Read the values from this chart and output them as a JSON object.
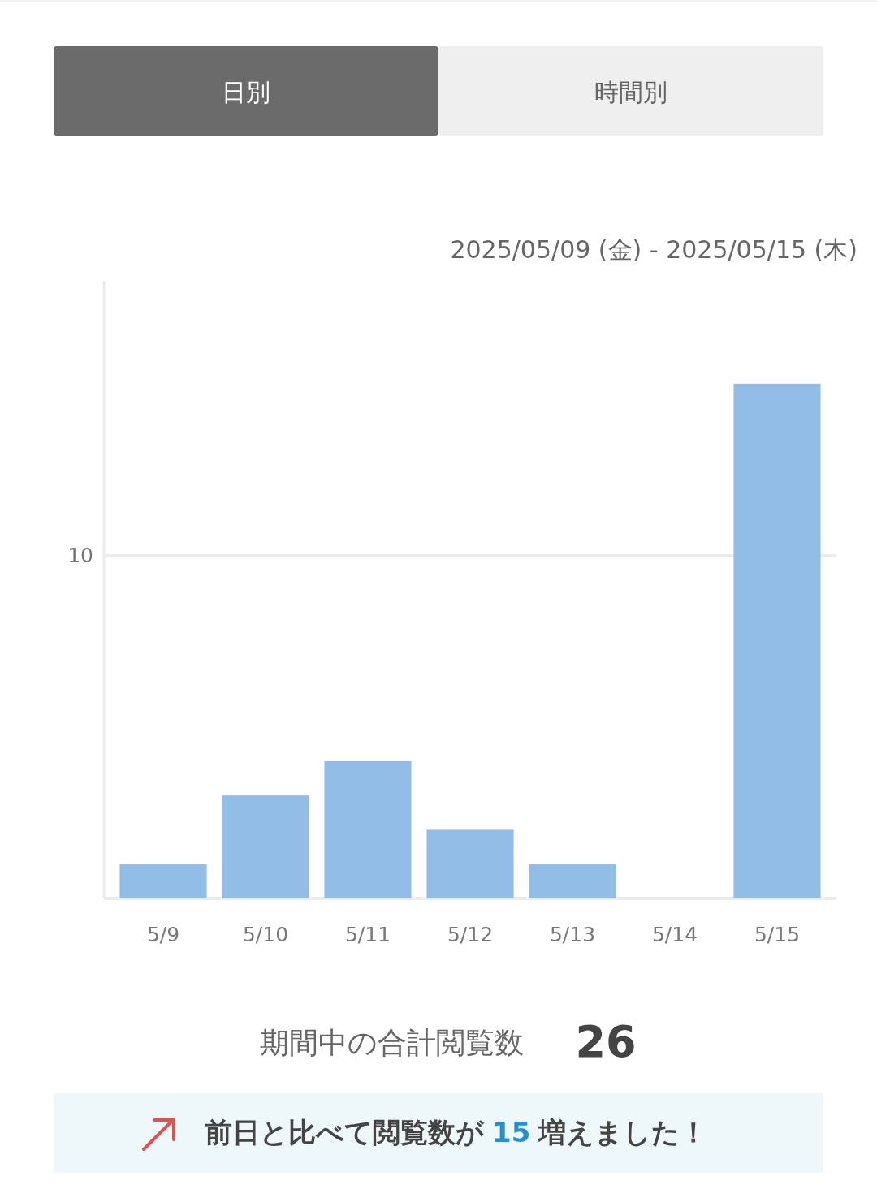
{
  "chart_data": {
    "type": "bar",
    "subtitle": "2025/05/09 (金) - 2025/05/15 (木)",
    "categories": [
      "5/9",
      "5/10",
      "5/11",
      "5/12",
      "5/13",
      "5/14",
      "5/15"
    ],
    "values": [
      1,
      3,
      4,
      2,
      1,
      0,
      15
    ],
    "color": "#92bde6",
    "ylim": [
      0,
      18
    ],
    "yticks": [
      {
        "value": 0,
        "label": null
      },
      10
    ],
    "grid": "y",
    "annotations": [
      "日別",
      "時間別",
      "期間中の合計閲覧数",
      "26",
      "前日と比べて閲覧数が",
      "15",
      "増えました！"
    ]
  }
}
